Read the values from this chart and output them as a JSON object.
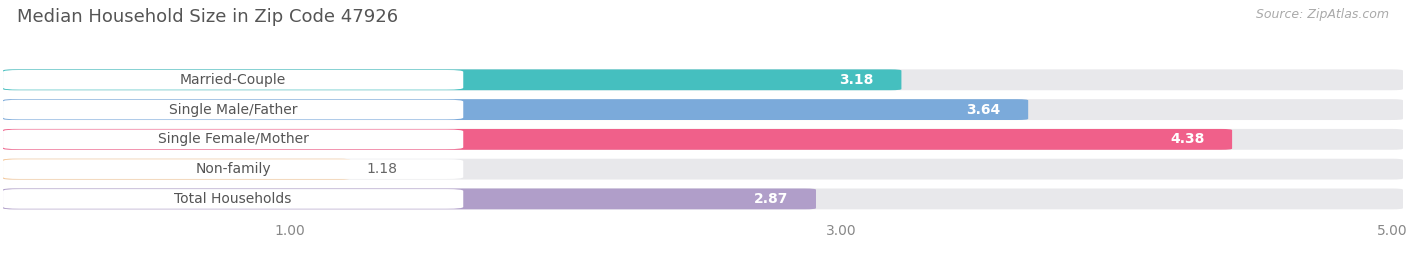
{
  "title": "Median Household Size in Zip Code 47926",
  "source": "Source: ZipAtlas.com",
  "categories": [
    "Married-Couple",
    "Single Male/Father",
    "Single Female/Mother",
    "Non-family",
    "Total Households"
  ],
  "values": [
    3.18,
    3.64,
    4.38,
    1.18,
    2.87
  ],
  "bar_colors": [
    "#45bfbf",
    "#7baada",
    "#f0608a",
    "#f5c899",
    "#b09ec9"
  ],
  "xlim": [
    0,
    5.0
  ],
  "xticks": [
    1.0,
    3.0,
    5.0
  ],
  "background_color": "#f5f5f5",
  "bar_bg_color": "#e8e8eb",
  "title_fontsize": 13,
  "source_fontsize": 9,
  "label_fontsize": 10,
  "value_fontsize": 10
}
